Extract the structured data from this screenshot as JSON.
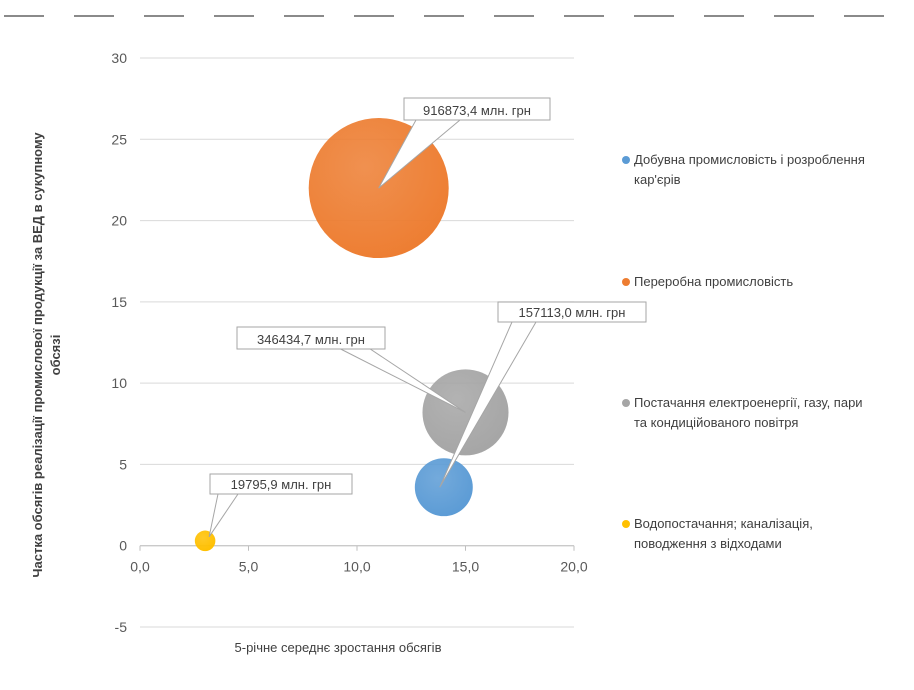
{
  "chart_data": {
    "type": "bubble",
    "xlabel": "5-річне середнє зростання обсягів",
    "ylabel_lines": [
      "Частка обсягів реалізації промислової продукції за ВЕД в сукупному",
      "обсязі"
    ],
    "xlim": [
      0,
      20
    ],
    "ylim": [
      -5,
      30
    ],
    "x_ticks": [
      "0,0",
      "5,0",
      "10,0",
      "15,0",
      "20,0"
    ],
    "y_ticks": [
      "-5",
      "0",
      "5",
      "10",
      "15",
      "20",
      "25",
      "30"
    ],
    "grid": true,
    "legend_position": "right",
    "series": [
      {
        "name_lines": [
          "Добувна промисловість і розроблення",
          "кар'єрів"
        ],
        "color": "#5B9BD5",
        "x": 14.0,
        "y": 3.6,
        "size": 157113.0,
        "label": "157113,0 млн. грн"
      },
      {
        "name_lines": [
          "Переробна промисловість"
        ],
        "color": "#ED7D31",
        "x": 11.0,
        "y": 22.0,
        "size": 916873.4,
        "label": "916873,4 млн. грн"
      },
      {
        "name_lines": [
          "Постачання електроенергії, газу, пари",
          "та кондиційованого повітря"
        ],
        "color": "#A5A5A5",
        "x": 15.0,
        "y": 8.2,
        "size": 346434.7,
        "label": "346434,7 млн. грн"
      },
      {
        "name_lines": [
          "Водопостачання; каналізація,",
          "поводження з відходами"
        ],
        "color": "#FFC000",
        "x": 3.0,
        "y": 0.3,
        "size": 19795.9,
        "label": "19795,9 млн. грн"
      }
    ]
  }
}
